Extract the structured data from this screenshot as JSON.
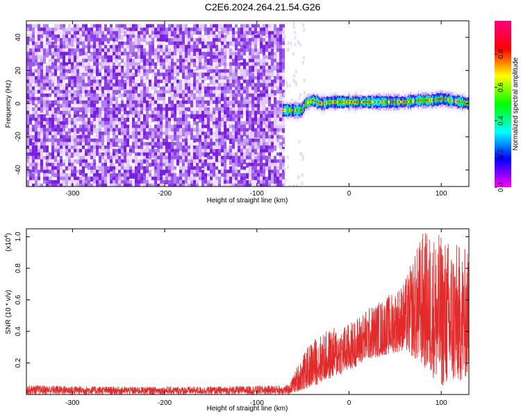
{
  "title": "C2E6.2024.264.21.54.G26",
  "chart_data": [
    {
      "type": "heatmap",
      "xlabel": "Height of straight line (km)",
      "ylabel": "Frequency (Hz)",
      "xlim": [
        -350,
        130
      ],
      "ylim": [
        -50,
        50
      ],
      "xticks": [
        -300,
        -200,
        -100,
        0,
        100
      ],
      "yticks": [
        -40,
        -20,
        0,
        20,
        40
      ],
      "colorbar": {
        "label": "Normalized spectral amplitude",
        "range": [
          0,
          1
        ],
        "ticks": [
          "0.0",
          "0.2",
          "0.4",
          "0.6",
          "0.8"
        ],
        "colormap": [
          "#ff00ff",
          "#0000ff",
          "#00ffff",
          "#00ff00",
          "#ffff00",
          "#ff0000",
          "#ff0080"
        ]
      },
      "regions": [
        {
          "x_range": [
            -350,
            -72
          ],
          "frequency_range": [
            -50,
            48
          ],
          "amplitude": "noise, approx 0.0-0.1"
        },
        {
          "x_range": [
            -72,
            130
          ],
          "frequency_center_track": [
            {
              "x": -72,
              "y": -4
            },
            {
              "x": -60,
              "y": -4
            },
            {
              "x": -52,
              "y": -4
            },
            {
              "x": -48,
              "y": 0
            },
            {
              "x": -40,
              "y": 2
            },
            {
              "x": -30,
              "y": 0
            },
            {
              "x": -20,
              "y": 1
            },
            {
              "x": 0,
              "y": 1
            },
            {
              "x": 20,
              "y": 1
            },
            {
              "x": 40,
              "y": 1
            },
            {
              "x": 60,
              "y": 1
            },
            {
              "x": 75,
              "y": 2
            },
            {
              "x": 90,
              "y": 2
            },
            {
              "x": 100,
              "y": 3
            },
            {
              "x": 110,
              "y": 2
            },
            {
              "x": 120,
              "y": 1
            },
            {
              "x": 130,
              "y": 0
            }
          ],
          "amplitude": "peak 0.8-1.0 at center"
        }
      ]
    },
    {
      "type": "line",
      "xlabel": "Height of straight line (km)",
      "ylabel": "SNR (10 * v/v)",
      "multiplier_label": "(x10",
      "multiplier_exp": "4",
      "multiplier_close": ")",
      "xlim": [
        -350,
        130
      ],
      "ylim": [
        0,
        1.05
      ],
      "xticks": [
        -300,
        -200,
        -100,
        0,
        100
      ],
      "yticks": [
        0.2,
        0.4,
        0.6,
        0.8,
        1.0
      ],
      "color": "#e32b2b",
      "series": [
        {
          "envelope": [
            {
              "x": -350,
              "low": 0.0,
              "high": 0.06
            },
            {
              "x": -250,
              "low": 0.0,
              "high": 0.05
            },
            {
              "x": -150,
              "low": 0.0,
              "high": 0.05
            },
            {
              "x": -65,
              "low": 0.0,
              "high": 0.06
            },
            {
              "x": -55,
              "low": 0.02,
              "high": 0.2
            },
            {
              "x": -40,
              "low": 0.05,
              "high": 0.35
            },
            {
              "x": -20,
              "low": 0.1,
              "high": 0.42
            },
            {
              "x": 0,
              "low": 0.15,
              "high": 0.45
            },
            {
              "x": 20,
              "low": 0.22,
              "high": 0.55
            },
            {
              "x": 40,
              "low": 0.25,
              "high": 0.62
            },
            {
              "x": 60,
              "low": 0.28,
              "high": 0.72
            },
            {
              "x": 80,
              "low": 0.18,
              "high": 1.04
            },
            {
              "x": 100,
              "low": 0.05,
              "high": 1.02
            },
            {
              "x": 120,
              "low": 0.08,
              "high": 0.95
            },
            {
              "x": 130,
              "low": 0.12,
              "high": 0.92
            }
          ]
        }
      ]
    }
  ]
}
